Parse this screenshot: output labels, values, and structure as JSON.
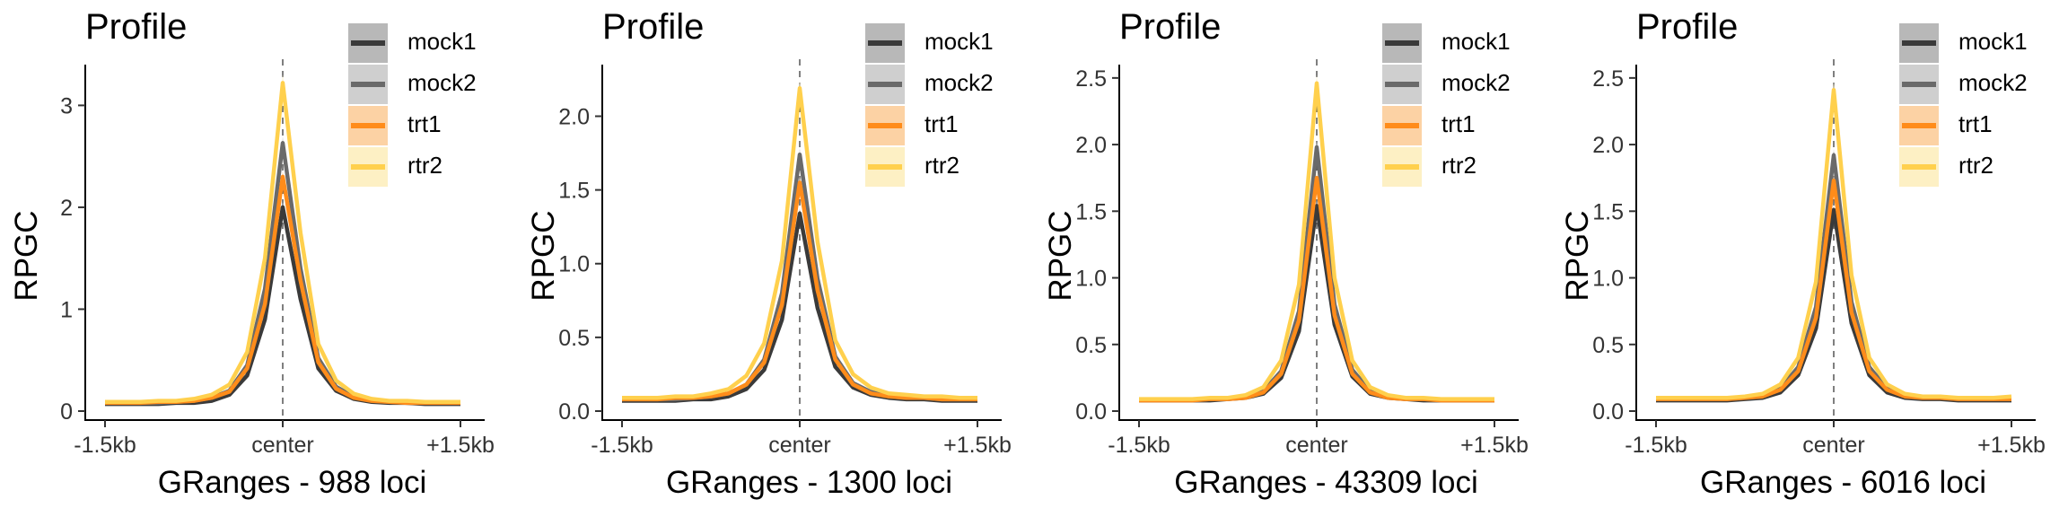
{
  "chart_data": [
    {
      "type": "line",
      "title": "Profile",
      "xlabel": "GRanges - 988 loci",
      "ylabel": "RPGC",
      "x_tick_labels": [
        "-1.5kb",
        "center",
        "+1.5kb"
      ],
      "x": [
        -1.5,
        -1.35,
        -1.2,
        -1.05,
        -0.9,
        -0.75,
        -0.6,
        -0.45,
        -0.3,
        -0.15,
        0,
        0.15,
        0.3,
        0.45,
        0.6,
        0.75,
        0.9,
        1.05,
        1.2,
        1.35,
        1.5
      ],
      "ylim": [
        0,
        3.4
      ],
      "yticks": [
        0,
        1,
        2,
        3
      ],
      "center_line": "dashed",
      "legend_position": "top-right",
      "series": [
        {
          "name": "mock1",
          "color": "#3a3a3a",
          "band": "#b8b8b8",
          "values": [
            0.07,
            0.07,
            0.07,
            0.07,
            0.08,
            0.08,
            0.1,
            0.16,
            0.35,
            0.9,
            2.0,
            1.1,
            0.42,
            0.2,
            0.12,
            0.09,
            0.08,
            0.08,
            0.07,
            0.07,
            0.07
          ]
        },
        {
          "name": "mock2",
          "color": "#6a6a6a",
          "band": "#cfcfcf",
          "values": [
            0.08,
            0.08,
            0.08,
            0.08,
            0.09,
            0.1,
            0.13,
            0.2,
            0.45,
            1.2,
            2.63,
            1.4,
            0.52,
            0.24,
            0.14,
            0.1,
            0.09,
            0.08,
            0.08,
            0.08,
            0.08
          ]
        },
        {
          "name": "trt1",
          "color": "#ff8c1a",
          "band": "#fcd2a4",
          "values": [
            0.08,
            0.08,
            0.08,
            0.09,
            0.09,
            0.1,
            0.13,
            0.19,
            0.42,
            1.05,
            2.3,
            1.28,
            0.48,
            0.22,
            0.13,
            0.1,
            0.09,
            0.08,
            0.08,
            0.08,
            0.08
          ]
        },
        {
          "name": "rtr2",
          "color": "#ffd04d",
          "band": "#fdf0c4",
          "values": [
            0.09,
            0.09,
            0.09,
            0.1,
            0.1,
            0.12,
            0.16,
            0.26,
            0.58,
            1.5,
            3.22,
            1.75,
            0.66,
            0.3,
            0.17,
            0.12,
            0.1,
            0.1,
            0.09,
            0.09,
            0.09
          ]
        }
      ]
    },
    {
      "type": "line",
      "title": "Profile",
      "xlabel": "GRanges - 1300 loci",
      "ylabel": "RPGC",
      "x_tick_labels": [
        "-1.5kb",
        "center",
        "+1.5kb"
      ],
      "x": [
        -1.5,
        -1.35,
        -1.2,
        -1.05,
        -0.9,
        -0.75,
        -0.6,
        -0.45,
        -0.3,
        -0.15,
        0,
        0.15,
        0.3,
        0.45,
        0.6,
        0.75,
        0.9,
        1.05,
        1.2,
        1.35,
        1.5
      ],
      "ylim": [
        0,
        2.35
      ],
      "yticks": [
        0.0,
        0.5,
        1.0,
        1.5,
        2.0
      ],
      "y_tick_labels": [
        "0.0",
        "0.5",
        "1.0",
        "1.5",
        "2.0"
      ],
      "center_line": "dashed",
      "legend_position": "top-right",
      "series": [
        {
          "name": "mock1",
          "color": "#3a3a3a",
          "band": "#b8b8b8",
          "values": [
            0.07,
            0.07,
            0.07,
            0.07,
            0.08,
            0.08,
            0.1,
            0.15,
            0.28,
            0.62,
            1.34,
            0.7,
            0.3,
            0.16,
            0.11,
            0.09,
            0.08,
            0.08,
            0.07,
            0.07,
            0.07
          ]
        },
        {
          "name": "mock2",
          "color": "#6a6a6a",
          "band": "#cfcfcf",
          "values": [
            0.08,
            0.08,
            0.08,
            0.08,
            0.09,
            0.1,
            0.12,
            0.18,
            0.35,
            0.8,
            1.74,
            0.9,
            0.37,
            0.19,
            0.13,
            0.1,
            0.09,
            0.09,
            0.08,
            0.08,
            0.08
          ]
        },
        {
          "name": "trt1",
          "color": "#ff8c1a",
          "band": "#fcd2a4",
          "values": [
            0.08,
            0.08,
            0.08,
            0.09,
            0.09,
            0.1,
            0.12,
            0.18,
            0.33,
            0.72,
            1.55,
            0.82,
            0.35,
            0.18,
            0.12,
            0.1,
            0.09,
            0.09,
            0.08,
            0.08,
            0.08
          ]
        },
        {
          "name": "rtr2",
          "color": "#ffd04d",
          "band": "#fdf0c4",
          "values": [
            0.09,
            0.09,
            0.09,
            0.1,
            0.1,
            0.12,
            0.15,
            0.24,
            0.46,
            1.02,
            2.19,
            1.15,
            0.48,
            0.25,
            0.16,
            0.12,
            0.11,
            0.1,
            0.1,
            0.09,
            0.09
          ]
        }
      ]
    },
    {
      "type": "line",
      "title": "Profile",
      "xlabel": "GRanges - 43309 loci",
      "ylabel": "RPGC",
      "x_tick_labels": [
        "-1.5kb",
        "center",
        "+1.5kb"
      ],
      "x": [
        -1.5,
        -1.35,
        -1.2,
        -1.05,
        -0.9,
        -0.75,
        -0.6,
        -0.45,
        -0.3,
        -0.15,
        0,
        0.15,
        0.3,
        0.45,
        0.6,
        0.75,
        0.9,
        1.05,
        1.2,
        1.35,
        1.5
      ],
      "ylim": [
        0,
        2.6
      ],
      "yticks": [
        0.0,
        0.5,
        1.0,
        1.5,
        2.0,
        2.5
      ],
      "y_tick_labels": [
        "0.0",
        "0.5",
        "1.0",
        "1.5",
        "2.0",
        "2.5"
      ],
      "center_line": "dashed",
      "legend_position": "top-right",
      "series": [
        {
          "name": "mock1",
          "color": "#3a3a3a",
          "band": "#b8b8b8",
          "values": [
            0.08,
            0.08,
            0.08,
            0.08,
            0.08,
            0.09,
            0.1,
            0.13,
            0.25,
            0.6,
            1.54,
            0.65,
            0.26,
            0.13,
            0.1,
            0.09,
            0.08,
            0.08,
            0.08,
            0.08,
            0.08
          ]
        },
        {
          "name": "mock2",
          "color": "#6a6a6a",
          "band": "#cfcfcf",
          "values": [
            0.08,
            0.08,
            0.08,
            0.08,
            0.09,
            0.09,
            0.11,
            0.15,
            0.3,
            0.75,
            1.98,
            0.8,
            0.31,
            0.15,
            0.11,
            0.09,
            0.09,
            0.08,
            0.08,
            0.08,
            0.08
          ]
        },
        {
          "name": "trt1",
          "color": "#ff8c1a",
          "band": "#fcd2a4",
          "values": [
            0.08,
            0.08,
            0.08,
            0.08,
            0.09,
            0.09,
            0.1,
            0.14,
            0.28,
            0.68,
            1.75,
            0.72,
            0.28,
            0.14,
            0.1,
            0.09,
            0.09,
            0.08,
            0.08,
            0.08,
            0.08
          ]
        },
        {
          "name": "rtr2",
          "color": "#ffd04d",
          "band": "#fdf0c4",
          "values": [
            0.09,
            0.09,
            0.09,
            0.09,
            0.1,
            0.1,
            0.12,
            0.18,
            0.38,
            0.95,
            2.46,
            1.0,
            0.38,
            0.18,
            0.12,
            0.1,
            0.1,
            0.09,
            0.09,
            0.09,
            0.09
          ]
        }
      ]
    },
    {
      "type": "line",
      "title": "Profile",
      "xlabel": "GRanges - 6016 loci",
      "ylabel": "RPGC",
      "x_tick_labels": [
        "-1.5kb",
        "center",
        "+1.5kb"
      ],
      "x": [
        -1.5,
        -1.35,
        -1.2,
        -1.05,
        -0.9,
        -0.75,
        -0.6,
        -0.45,
        -0.3,
        -0.15,
        0,
        0.15,
        0.3,
        0.45,
        0.6,
        0.75,
        0.9,
        1.05,
        1.2,
        1.35,
        1.5
      ],
      "ylim": [
        0,
        2.6
      ],
      "yticks": [
        0.0,
        0.5,
        1.0,
        1.5,
        2.0,
        2.5
      ],
      "y_tick_labels": [
        "0.0",
        "0.5",
        "1.0",
        "1.5",
        "2.0",
        "2.5"
      ],
      "center_line": "dashed",
      "legend_position": "top-right",
      "series": [
        {
          "name": "mock1",
          "color": "#3a3a3a",
          "band": "#b8b8b8",
          "values": [
            0.08,
            0.08,
            0.08,
            0.08,
            0.08,
            0.09,
            0.1,
            0.14,
            0.27,
            0.62,
            1.51,
            0.66,
            0.27,
            0.14,
            0.1,
            0.09,
            0.09,
            0.08,
            0.08,
            0.08,
            0.08
          ]
        },
        {
          "name": "mock2",
          "color": "#6a6a6a",
          "band": "#cfcfcf",
          "values": [
            0.09,
            0.09,
            0.09,
            0.09,
            0.09,
            0.1,
            0.12,
            0.17,
            0.33,
            0.78,
            1.92,
            0.82,
            0.33,
            0.17,
            0.12,
            0.1,
            0.1,
            0.09,
            0.09,
            0.09,
            0.09
          ]
        },
        {
          "name": "trt1",
          "color": "#ff8c1a",
          "band": "#fcd2a4",
          "values": [
            0.09,
            0.09,
            0.09,
            0.09,
            0.09,
            0.1,
            0.11,
            0.16,
            0.3,
            0.7,
            1.73,
            0.74,
            0.3,
            0.16,
            0.11,
            0.1,
            0.1,
            0.09,
            0.09,
            0.09,
            0.09
          ]
        },
        {
          "name": "rtr2",
          "color": "#ffd04d",
          "band": "#fdf0c4",
          "values": [
            0.1,
            0.1,
            0.1,
            0.1,
            0.1,
            0.11,
            0.13,
            0.2,
            0.4,
            0.97,
            2.41,
            1.02,
            0.4,
            0.2,
            0.13,
            0.11,
            0.11,
            0.1,
            0.1,
            0.1,
            0.11
          ]
        }
      ]
    }
  ]
}
